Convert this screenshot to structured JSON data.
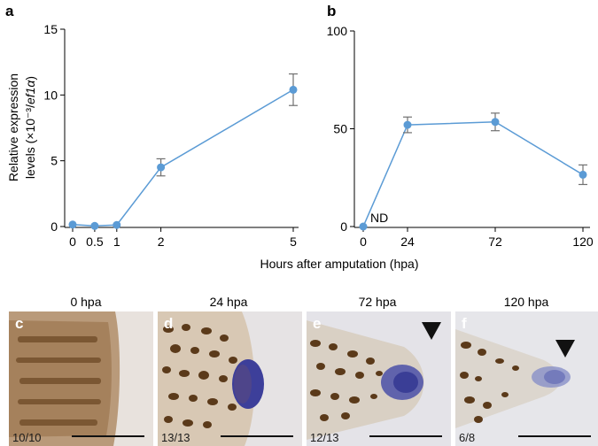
{
  "colors": {
    "series": "#5b9bd5",
    "errorbar": "#707070",
    "axis": "#000000"
  },
  "y_axis_label_line1": "Relative expression",
  "y_axis_label_line2": "levels (×10⁻³/",
  "y_axis_label_gene": "ef1α",
  "y_axis_label_end": ")",
  "chart_data": [
    {
      "panel": "a",
      "type": "line",
      "x": [
        0,
        0.5,
        1,
        2,
        5
      ],
      "x_tick_labels": [
        "0",
        "0.5",
        "1",
        "2",
        "5"
      ],
      "y": [
        0.15,
        0.05,
        0.12,
        4.5,
        10.4
      ],
      "y_err": [
        0.1,
        0.08,
        0.1,
        0.65,
        1.2
      ],
      "ylim": [
        0,
        15
      ],
      "y_ticks": [
        0,
        5,
        10,
        15
      ],
      "xlim": [
        0,
        5
      ]
    },
    {
      "panel": "b",
      "type": "line",
      "x_categories": [
        "0",
        "24",
        "72",
        "120"
      ],
      "y": [
        0,
        52,
        53.5,
        26.5
      ],
      "y_err": [
        0,
        4,
        4.5,
        5
      ],
      "ylim": [
        0,
        100
      ],
      "y_ticks": [
        0,
        50,
        100
      ],
      "annotation": "ND",
      "xlabel": "Hours after amputation (hpa)"
    }
  ],
  "photos": [
    {
      "letter": "c",
      "title": "0 hpa",
      "count": "10/10",
      "arrow": false
    },
    {
      "letter": "d",
      "title": "24 hpa",
      "count": "13/13",
      "arrow": false
    },
    {
      "letter": "e",
      "title": "72 hpa",
      "count": "12/13",
      "arrow": true
    },
    {
      "letter": "f",
      "title": "120 hpa",
      "count": "6/8",
      "arrow": true
    }
  ]
}
